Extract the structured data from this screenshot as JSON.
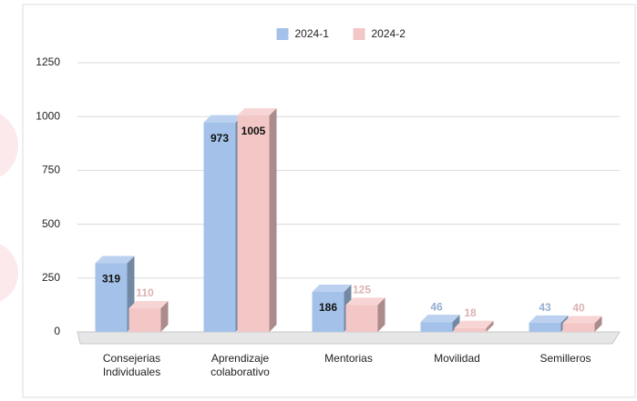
{
  "chart_data": {
    "type": "bar3d",
    "categories": [
      "Consejerias Individuales",
      "Aprendizaje colaborativo",
      "Mentorias",
      "Movilidad",
      "Semilleros"
    ],
    "series": [
      {
        "name": "2024-1",
        "color": "#a4c2e9",
        "values": [
          319,
          973,
          186,
          46,
          43
        ]
      },
      {
        "name": "2024-2",
        "color": "#f4c7c7",
        "values": [
          110,
          1005,
          125,
          18,
          40
        ]
      }
    ],
    "ylim": [
      0,
      1250
    ],
    "yticks": [
      0,
      250,
      500,
      750,
      1000,
      1250
    ],
    "grid": true,
    "legend": "top"
  }
}
